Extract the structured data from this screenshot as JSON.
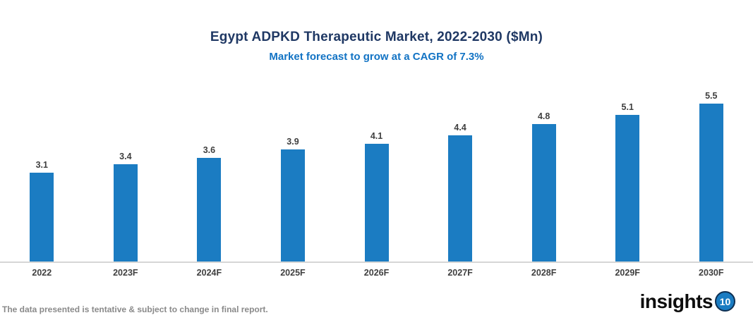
{
  "header": {
    "title": "Egypt ADPKD Therapeutic Market, 2022-2030 ($Mn)",
    "subtitle": "Market forecast to grow at a CAGR of 7.3%"
  },
  "chart_data": {
    "type": "bar",
    "categories": [
      "2022",
      "2023F",
      "2024F",
      "2025F",
      "2026F",
      "2027F",
      "2028F",
      "2029F",
      "2030F"
    ],
    "values": [
      3.1,
      3.4,
      3.6,
      3.9,
      4.1,
      4.4,
      4.8,
      5.1,
      5.5
    ],
    "title": "Egypt ADPKD Therapeutic Market, 2022-2030 ($Mn)",
    "subtitle": "Market forecast to grow at a CAGR of 7.3%",
    "xlabel": "",
    "ylabel": "",
    "ylim": [
      0,
      5.5
    ],
    "grid": false,
    "legend": false,
    "data_labels": true,
    "bar_color": "#1b7cc2",
    "data_label_color": "#3f3f3f"
  },
  "footer": {
    "disclaimer": "The data presented is tentative & subject to change in final report.",
    "logo_text": "insights",
    "logo_badge": "10"
  },
  "colors": {
    "title": "#1f3864",
    "subtitle": "#1273c4",
    "bar": "#1b7cc2",
    "axis_line": "#d6d6d6",
    "tick_label": "#3f3f3f",
    "footer_text": "#8a8a8a"
  }
}
